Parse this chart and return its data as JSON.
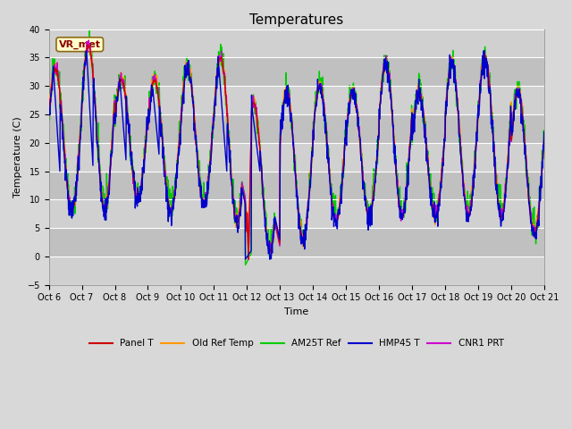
{
  "title": "Temperatures",
  "xlabel": "Time",
  "ylabel": "Temperature (C)",
  "ylim": [
    -5,
    40
  ],
  "yticks": [
    -5,
    0,
    5,
    10,
    15,
    20,
    25,
    30,
    35,
    40
  ],
  "xtick_labels": [
    "Oct 6",
    "Oct 7",
    "Oct 8",
    "Oct 9",
    "Oct 10",
    "Oct 11",
    "Oct 12",
    "Oct 13",
    "Oct 14",
    "Oct 15",
    "Oct 16",
    "Oct 17",
    "Oct 18",
    "Oct 19",
    "Oct 20",
    "Oct 21"
  ],
  "annotation_text": "VR_met",
  "colors": {
    "Panel T": "#cc0000",
    "Old Ref Temp": "#ff9900",
    "AM25T Ref": "#00cc00",
    "HMP45 T": "#0000cc",
    "CNR1 PRT": "#cc00cc"
  },
  "fig_bg": "#d8d8d8",
  "plot_bg": "#d8d8d8",
  "grid_color": "#ffffff",
  "band_color": "#c8c8c8",
  "title_fontsize": 11,
  "axis_fontsize": 8,
  "tick_fontsize": 7,
  "lw": 1.0,
  "day_maxes": [
    33,
    37,
    31,
    31,
    33,
    35,
    27,
    29,
    30,
    29,
    34,
    29,
    34,
    35,
    29,
    29
  ],
  "day_mins": [
    8,
    8,
    10,
    8,
    9,
    6,
    1,
    3,
    6,
    7,
    7,
    7,
    7,
    7,
    4,
    14
  ]
}
